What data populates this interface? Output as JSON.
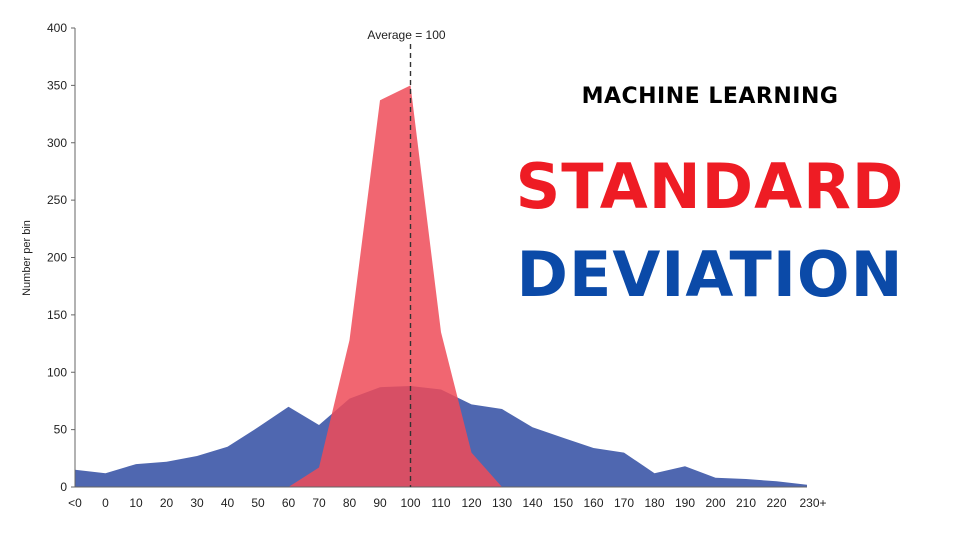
{
  "headline": {
    "kicker": "MACHINE LEARNING",
    "line1": "STANDARD",
    "line2": "DEVIATION",
    "line1_color": "#ee1c24",
    "line2_color": "#0b4aa8"
  },
  "chart_data": {
    "type": "area",
    "title": "",
    "xlabel": "",
    "ylabel": "Number per bin",
    "categories": [
      "<0",
      "0",
      "10",
      "20",
      "30",
      "40",
      "50",
      "60",
      "70",
      "80",
      "90",
      "100",
      "110",
      "120",
      "130",
      "140",
      "150",
      "160",
      "170",
      "180",
      "190",
      "200",
      "210",
      "220",
      "230+"
    ],
    "ylim": [
      0,
      400
    ],
    "yticks": [
      0,
      50,
      100,
      150,
      200,
      250,
      300,
      350,
      400
    ],
    "grid": false,
    "series": [
      {
        "color": "#4f67b0",
        "values": [
          15,
          12,
          20,
          22,
          27,
          35,
          52,
          70,
          54,
          77,
          87,
          88,
          85,
          72,
          68,
          52,
          43,
          34,
          30,
          12,
          18,
          8,
          7,
          5,
          2
        ]
      },
      {
        "color": "#ee4b58",
        "values": [
          null,
          null,
          null,
          null,
          null,
          null,
          null,
          0,
          17,
          128,
          337,
          350,
          135,
          30,
          0,
          null,
          null,
          null,
          null,
          null,
          null,
          null,
          null,
          null,
          null
        ]
      }
    ],
    "annotations": [
      {
        "type": "vline",
        "x": "100",
        "label": "Average = 100"
      }
    ]
  }
}
